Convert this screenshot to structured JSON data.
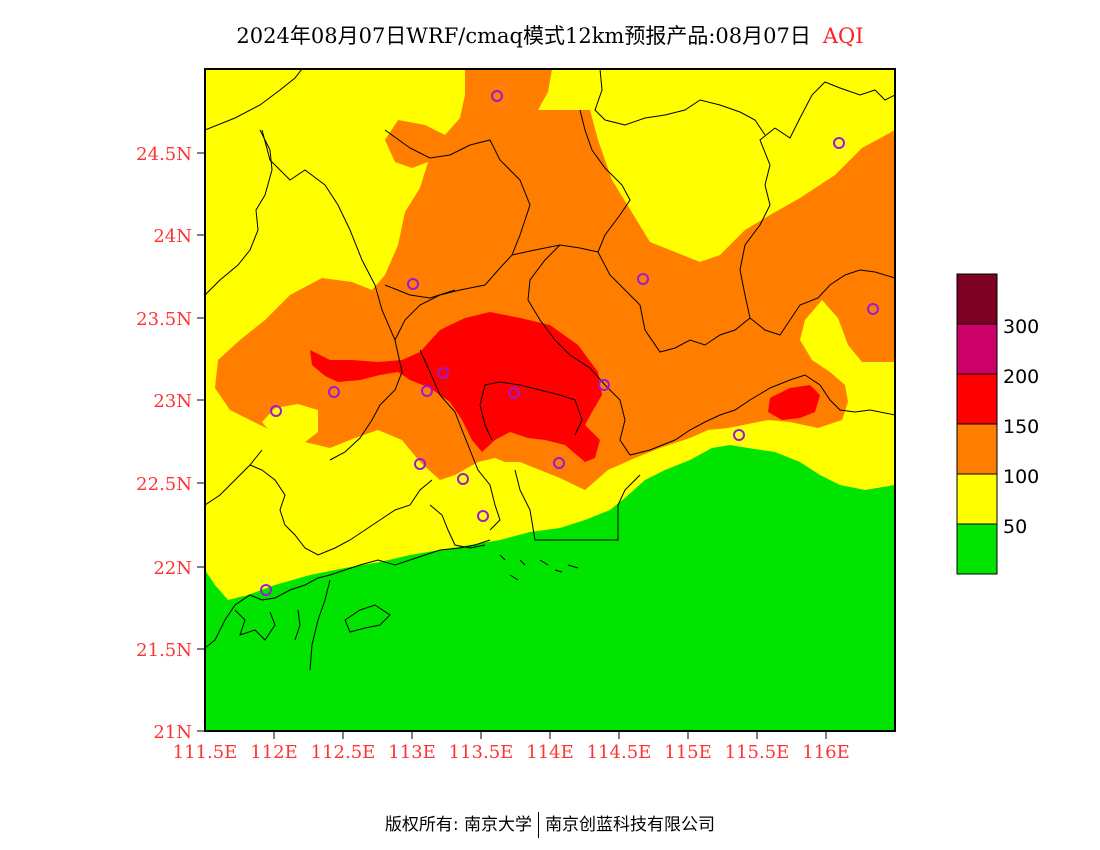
{
  "title": {
    "main": "2024年08月07日WRF/cmaq模式12km预报产品:08月07日",
    "product": "AQI"
  },
  "axes": {
    "x_ticks": [
      "111.5E",
      "112E",
      "112.5E",
      "113E",
      "113.5E",
      "114E",
      "114.5E",
      "115E",
      "115.5E",
      "116E"
    ],
    "y_ticks": [
      "21N",
      "21.5N",
      "22N",
      "22.5N",
      "23N",
      "23.5N",
      "24N",
      "24.5N"
    ],
    "tick_color": "#ff3333"
  },
  "legend": {
    "labels": [
      "50",
      "100",
      "150",
      "200",
      "300"
    ],
    "colors": {
      "good": "#00e400",
      "moderate": "#ffff00",
      "usg": "#ff7e00",
      "unhealthy": "#ff0000",
      "very_unhealthy": "#cc0066",
      "hazardous": "#7e0023"
    }
  },
  "stations": [
    "station-marker"
  ],
  "footer": {
    "copyright": "版权所有: 南京大学",
    "company": "南京创蓝科技有限公司"
  }
}
